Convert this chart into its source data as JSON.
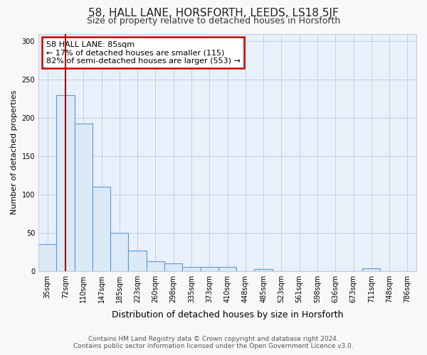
{
  "title": "58, HALL LANE, HORSFORTH, LEEDS, LS18 5JF",
  "subtitle": "Size of property relative to detached houses in Horsforth",
  "xlabel": "Distribution of detached houses by size in Horsforth",
  "ylabel": "Number of detached properties",
  "footer1": "Contains HM Land Registry data © Crown copyright and database right 2024.",
  "footer2": "Contains public sector information licensed under the Open Government Licence v3.0.",
  "annotation_line1": "58 HALL LANE: 85sqm",
  "annotation_line2": "← 17% of detached houses are smaller (115)",
  "annotation_line3": "82% of semi-detached houses are larger (553) →",
  "categories": [
    "35sqm",
    "72sqm",
    "110sqm",
    "147sqm",
    "185sqm",
    "223sqm",
    "260sqm",
    "298sqm",
    "335sqm",
    "373sqm",
    "410sqm",
    "448sqm",
    "485sqm",
    "523sqm",
    "561sqm",
    "598sqm",
    "636sqm",
    "673sqm",
    "711sqm",
    "748sqm",
    "786sqm"
  ],
  "values": [
    35,
    230,
    193,
    110,
    50,
    27,
    13,
    10,
    5,
    5,
    5,
    0,
    2,
    0,
    0,
    0,
    0,
    0,
    3,
    0,
    0
  ],
  "bar_fill_color": "#dce9f7",
  "bar_edge_color": "#5b9bd5",
  "red_line_x": 1,
  "ylim": [
    0,
    310
  ],
  "yticks": [
    0,
    50,
    100,
    150,
    200,
    250,
    300
  ],
  "annotation_box_color": "white",
  "annotation_box_edge": "#cc0000",
  "red_line_color": "#aa0000",
  "figure_background": "#f8f8fa",
  "plot_background": "#e8f0fa",
  "grid_color": "#c5cfe0",
  "title_fontsize": 11,
  "subtitle_fontsize": 9,
  "ylabel_fontsize": 8,
  "xlabel_fontsize": 9,
  "tick_fontsize": 7,
  "footer_fontsize": 6.5,
  "annotation_fontsize": 8
}
